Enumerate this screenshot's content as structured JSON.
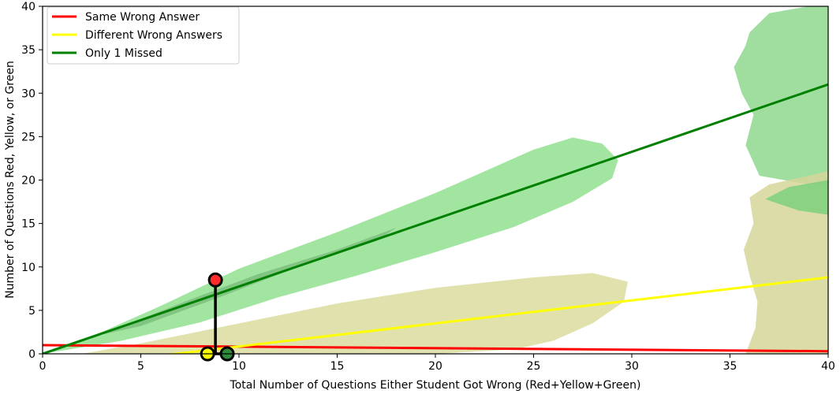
{
  "chart_data": {
    "type": "line",
    "xlabel": "Total Number of Questions Either Student Got Wrong (Red+Yellow+Green)",
    "ylabel": "Number of Questions Red, Yellow, or Green",
    "xlim": [
      0,
      40
    ],
    "ylim": [
      0,
      40
    ],
    "xticks": [
      0,
      5,
      10,
      15,
      20,
      25,
      30,
      35,
      40
    ],
    "yticks": [
      0,
      5,
      10,
      15,
      20,
      25,
      30,
      35,
      40
    ],
    "grid": false,
    "legend_position": "top-left",
    "series": [
      {
        "name": "Same Wrong Answer",
        "color": "#ff0000",
        "x": [
          0,
          40
        ],
        "y": [
          1.0,
          0.3
        ]
      },
      {
        "name": "Different Wrong Answers",
        "color": "#ffff00",
        "x": [
          0,
          40
        ],
        "y": [
          -1.8,
          8.8
        ]
      },
      {
        "name": "Only 1 Missed",
        "color": "#008000",
        "x": [
          0,
          40
        ],
        "y": [
          0.0,
          31.0
        ]
      }
    ],
    "highlight_points": [
      {
        "category": "red",
        "x": 8.8,
        "y": 8.5,
        "color": "#ff2a2a"
      },
      {
        "category": "yellow",
        "x": 8.4,
        "y": 0.0,
        "color": "#ffff00"
      },
      {
        "category": "green",
        "x": 9.4,
        "y": 0.0,
        "color": "#2e8b3e"
      }
    ],
    "connector": {
      "x": 8.8,
      "y_from": 0.0,
      "y_to": 8.5
    },
    "density_regions": [
      {
        "name": "green",
        "color": "#90e090",
        "outline": [
          [
            0,
            0
          ],
          [
            2,
            1.5
          ],
          [
            6,
            5.5
          ],
          [
            10,
            9.8
          ],
          [
            15,
            14
          ],
          [
            20,
            18.5
          ],
          [
            25,
            23.5
          ],
          [
            27,
            24.9
          ],
          [
            28.5,
            24.2
          ],
          [
            29.3,
            22.3
          ],
          [
            29,
            20.2
          ],
          [
            27,
            17.5
          ],
          [
            24,
            14.6
          ],
          [
            20,
            11.7
          ],
          [
            16,
            9
          ],
          [
            12,
            6.5
          ],
          [
            8,
            3.6
          ],
          [
            4,
            1.5
          ],
          [
            0,
            0
          ]
        ]
      },
      {
        "name": "green-core",
        "color": "#7cc07c",
        "outline": [
          [
            3,
            2.2
          ],
          [
            7,
            5.8
          ],
          [
            11,
            9.2
          ],
          [
            15,
            12
          ],
          [
            18,
            14.5
          ],
          [
            17,
            13
          ],
          [
            13,
            10
          ],
          [
            9,
            6.5
          ],
          [
            5,
            3.2
          ],
          [
            3,
            2.2
          ]
        ]
      },
      {
        "name": "yellow",
        "color": "#dcdca0",
        "outline": [
          [
            2,
            0
          ],
          [
            5,
            1.2
          ],
          [
            10,
            3.5
          ],
          [
            15,
            5.8
          ],
          [
            20,
            7.6
          ],
          [
            25,
            8.8
          ],
          [
            28,
            9.3
          ],
          [
            29.8,
            8.3
          ],
          [
            29.6,
            6
          ],
          [
            28,
            3.5
          ],
          [
            26,
            1.5
          ],
          [
            24,
            0.5
          ],
          [
            20,
            0
          ],
          [
            2,
            0
          ]
        ]
      },
      {
        "name": "green-right",
        "color": "#8fd88f",
        "outline": [
          [
            36,
            37
          ],
          [
            37,
            39.2
          ],
          [
            39,
            40
          ],
          [
            40,
            40
          ],
          [
            40,
            19.5
          ],
          [
            39,
            19.5
          ],
          [
            36.5,
            20.5
          ],
          [
            35.8,
            24
          ],
          [
            36.2,
            27.5
          ],
          [
            35.6,
            30
          ],
          [
            35.2,
            33
          ],
          [
            35.8,
            35.5
          ],
          [
            36,
            37
          ]
        ]
      },
      {
        "name": "yellow-right",
        "color": "#d6d69a",
        "outline": [
          [
            36,
            18
          ],
          [
            37,
            19.5
          ],
          [
            39,
            20.5
          ],
          [
            40,
            21
          ],
          [
            40,
            0
          ],
          [
            35.8,
            0
          ],
          [
            36.3,
            3
          ],
          [
            36.4,
            6
          ],
          [
            36,
            9
          ],
          [
            35.7,
            12
          ],
          [
            36.2,
            15
          ],
          [
            36,
            18
          ]
        ]
      },
      {
        "name": "green-right-lower",
        "color": "#7cd07c",
        "outline": [
          [
            36.8,
            17.8
          ],
          [
            38,
            19.2
          ],
          [
            40,
            20
          ],
          [
            40,
            16
          ],
          [
            38.5,
            16.5
          ],
          [
            36.8,
            17.8
          ]
        ]
      }
    ],
    "legend": [
      {
        "label": "Same Wrong Answer",
        "color": "#ff0000"
      },
      {
        "label": "Different Wrong Answers",
        "color": "#ffff00"
      },
      {
        "label": "Only 1 Missed",
        "color": "#008000"
      }
    ]
  }
}
